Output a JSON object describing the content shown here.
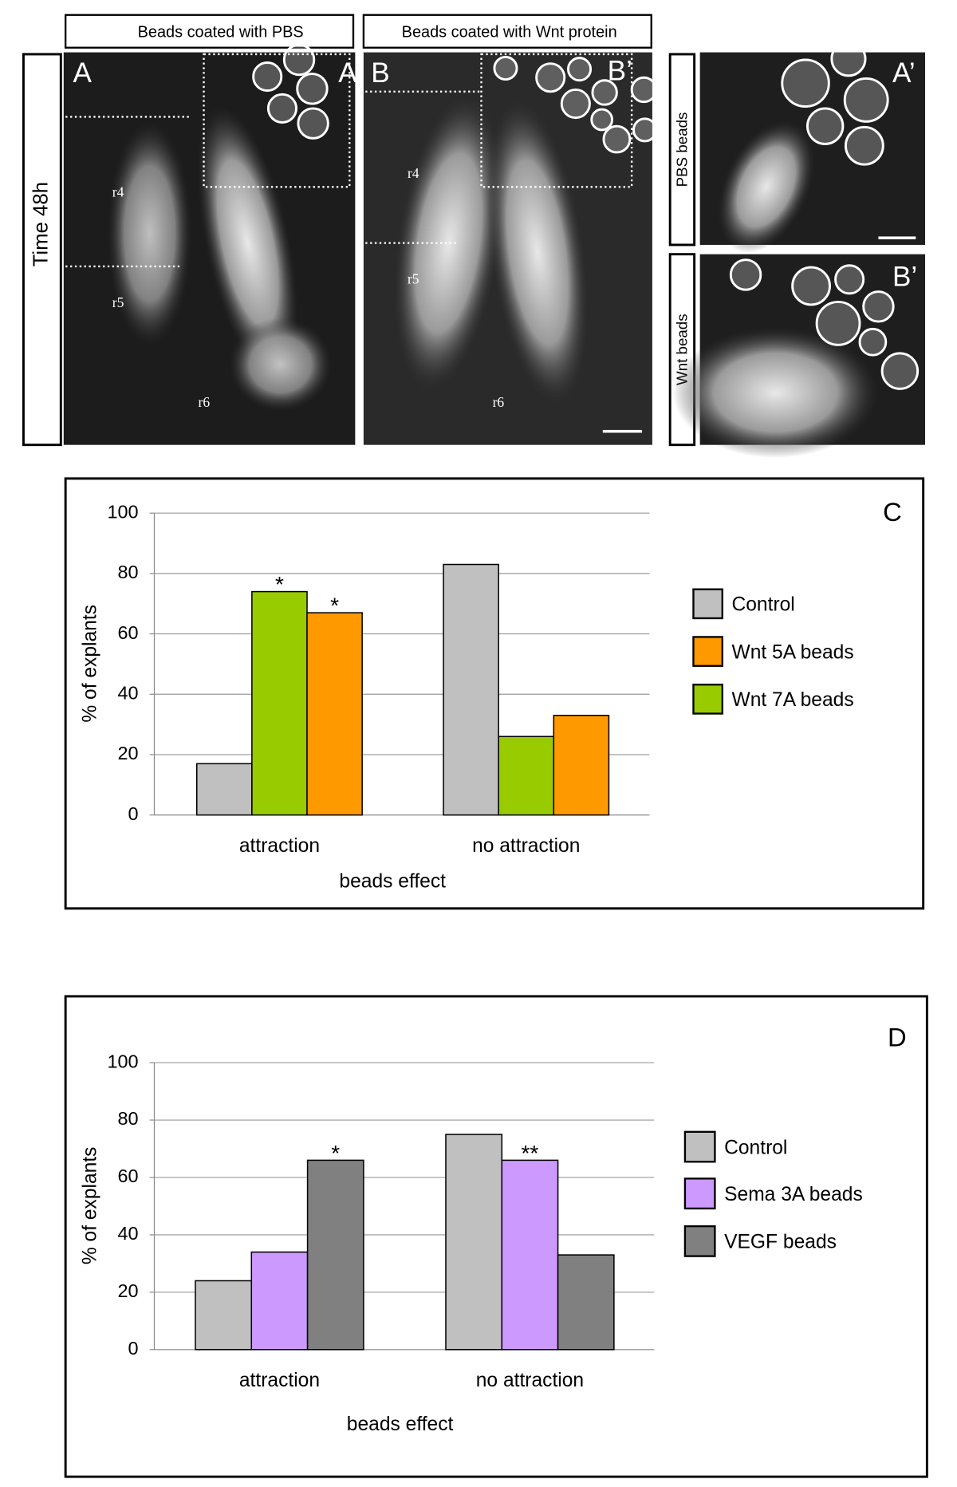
{
  "figure": {
    "headers": [
      "Beads coated with PBS",
      "Beads coated with Wnt protein"
    ],
    "time_label": "Time 48h",
    "panel_A": {
      "letter": "A",
      "inset_letter": "A’",
      "regions": [
        "r4",
        "r5",
        "r6"
      ]
    },
    "panel_B": {
      "letter": "B",
      "inset_letter": "B’",
      "regions": [
        "r4",
        "r5",
        "r6"
      ]
    },
    "inset_A": {
      "side_label": "PBS beads",
      "letter": "A’"
    },
    "inset_B": {
      "side_label": "Wnt beads",
      "letter": "B’"
    }
  },
  "chart_data": [
    {
      "type": "bar",
      "panel_label": "C",
      "ylabel": "% of explants",
      "xlabel": "beads effect",
      "categories": [
        "attraction",
        "no attraction"
      ],
      "series": [
        {
          "name": "Control",
          "color": "#c0c0c0",
          "values": [
            17,
            83
          ]
        },
        {
          "name": "Wnt 5A beads",
          "color": "#ff9900",
          "values": [
            67,
            33
          ]
        },
        {
          "name": "Wnt 7A beads",
          "color": "#99cc00",
          "values": [
            74,
            26
          ]
        }
      ],
      "bar_order": [
        0,
        2,
        1
      ],
      "annotations": [
        {
          "text": "*",
          "series": 2,
          "category": 0
        },
        {
          "text": "*",
          "series": 1,
          "category": 0
        }
      ],
      "ylim": [
        0,
        100
      ],
      "yticks": [
        0,
        20,
        40,
        60,
        80,
        100
      ],
      "grid": true,
      "legend": "right"
    },
    {
      "type": "bar",
      "panel_label": "D",
      "ylabel": "% of explants",
      "xlabel": "beads effect",
      "categories": [
        "attraction",
        "no attraction"
      ],
      "series": [
        {
          "name": "Control",
          "color": "#c0c0c0",
          "values": [
            24,
            75
          ]
        },
        {
          "name": "Sema 3A beads",
          "color": "#cc99ff",
          "values": [
            34,
            66
          ]
        },
        {
          "name": "VEGF beads",
          "color": "#808080",
          "values": [
            66,
            33
          ]
        }
      ],
      "bar_order": [
        0,
        1,
        2
      ],
      "annotations": [
        {
          "text": "*",
          "series": 2,
          "category": 0
        },
        {
          "text": "**",
          "series": 1,
          "category": 1
        }
      ],
      "ylim": [
        0,
        100
      ],
      "yticks": [
        0,
        20,
        40,
        60,
        80,
        100
      ],
      "grid": true,
      "legend": "right"
    }
  ]
}
